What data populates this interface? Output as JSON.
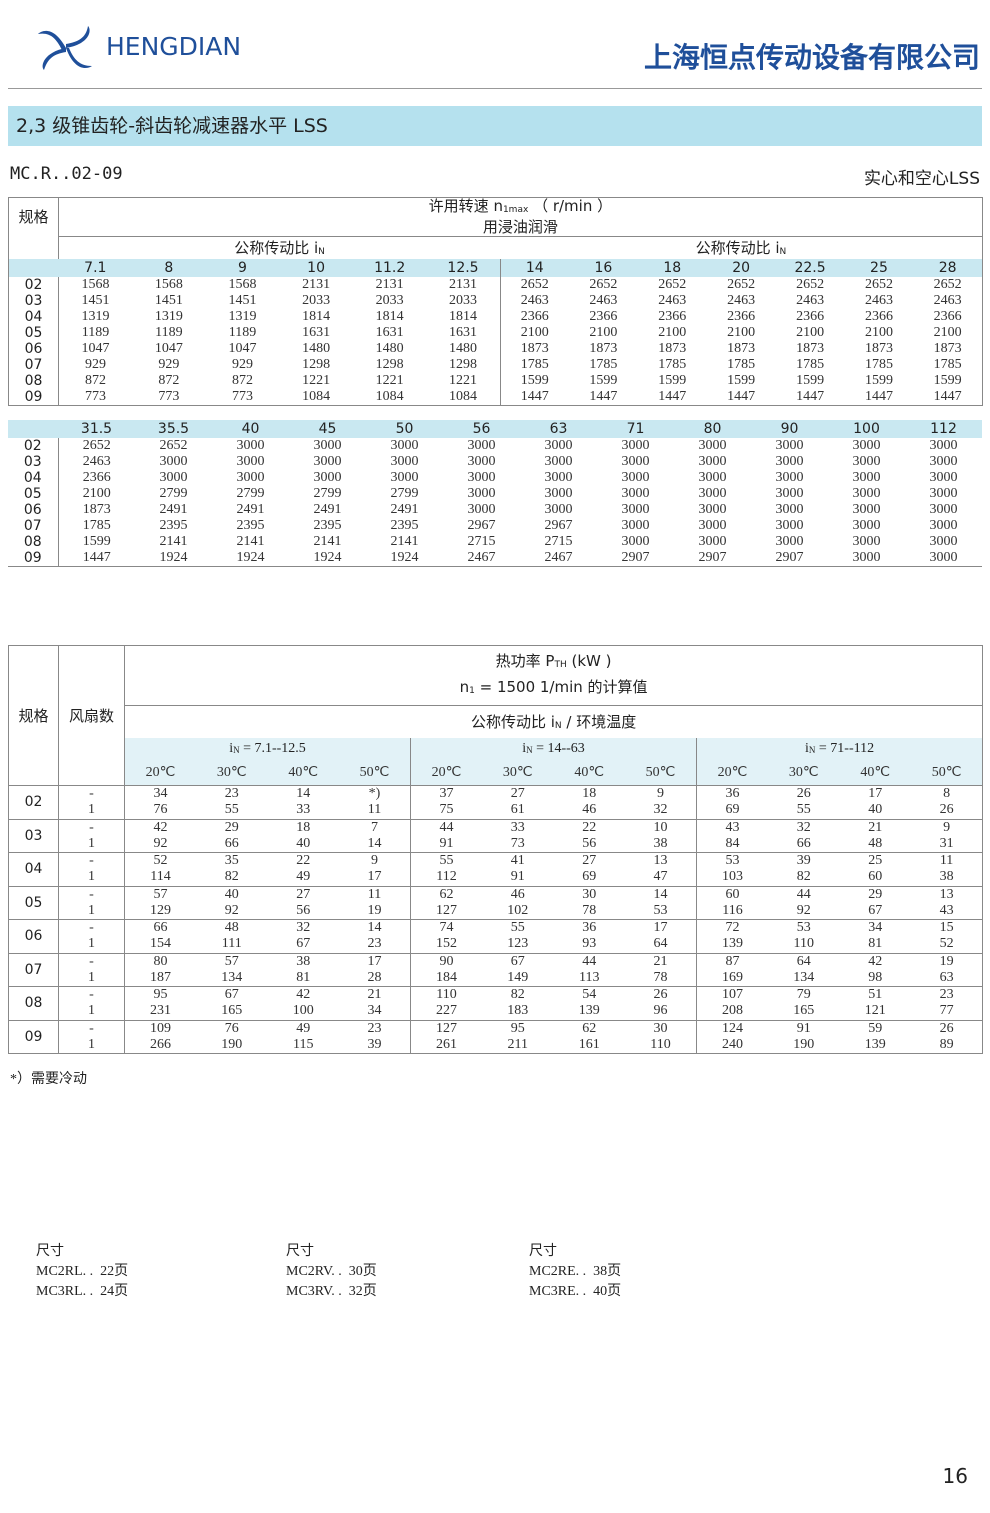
{
  "header": {
    "brand": "HENGDIAN",
    "company": "上海恒点传动设备有限公司"
  },
  "section_title": "2,3 级锥齿轮-斜齿轮减速器水平 LSS",
  "code": "MC.R..02-09",
  "type_label": "实心和空心LSS",
  "speed_table": {
    "size_header": "规格",
    "title": [
      "许用转速 n",
      "1max",
      "（ r/min ）"
    ],
    "subtitle": "用浸油润滑",
    "ratio_label_left": [
      "公称传动比 i",
      "N"
    ],
    "ratio_label_right": [
      "公称传动比 i",
      "N"
    ],
    "blocks": [
      {
        "ratios": [
          "7.1",
          "8",
          "9",
          "10",
          "11.2",
          "12.5",
          "14",
          "16",
          "18",
          "20",
          "22.5",
          "25",
          "28"
        ],
        "rows": [
          {
            "size": "02",
            "values": [
              1568,
              1568,
              1568,
              2131,
              2131,
              2131,
              2652,
              2652,
              2652,
              2652,
              2652,
              2652,
              2652
            ]
          },
          {
            "size": "03",
            "values": [
              1451,
              1451,
              1451,
              2033,
              2033,
              2033,
              2463,
              2463,
              2463,
              2463,
              2463,
              2463,
              2463
            ]
          },
          {
            "size": "04",
            "values": [
              1319,
              1319,
              1319,
              1814,
              1814,
              1814,
              2366,
              2366,
              2366,
              2366,
              2366,
              2366,
              2366
            ]
          },
          {
            "size": "05",
            "values": [
              1189,
              1189,
              1189,
              1631,
              1631,
              1631,
              2100,
              2100,
              2100,
              2100,
              2100,
              2100,
              2100
            ]
          },
          {
            "size": "06",
            "values": [
              1047,
              1047,
              1047,
              1480,
              1480,
              1480,
              1873,
              1873,
              1873,
              1873,
              1873,
              1873,
              1873
            ]
          },
          {
            "size": "07",
            "values": [
              929,
              929,
              929,
              1298,
              1298,
              1298,
              1785,
              1785,
              1785,
              1785,
              1785,
              1785,
              1785
            ]
          },
          {
            "size": "08",
            "values": [
              872,
              872,
              872,
              1221,
              1221,
              1221,
              1599,
              1599,
              1599,
              1599,
              1599,
              1599,
              1599
            ]
          },
          {
            "size": "09",
            "values": [
              773,
              773,
              773,
              1084,
              1084,
              1084,
              1447,
              1447,
              1447,
              1447,
              1447,
              1447,
              1447
            ]
          }
        ]
      },
      {
        "ratios": [
          "31.5",
          "35.5",
          "40",
          "45",
          "50",
          "56",
          "63",
          "71",
          "80",
          "90",
          "100",
          "112"
        ],
        "rows": [
          {
            "size": "02",
            "values": [
              2652,
              2652,
              3000,
              3000,
              3000,
              3000,
              3000,
              3000,
              3000,
              3000,
              3000,
              3000
            ]
          },
          {
            "size": "03",
            "values": [
              2463,
              3000,
              3000,
              3000,
              3000,
              3000,
              3000,
              3000,
              3000,
              3000,
              3000,
              3000
            ]
          },
          {
            "size": "04",
            "values": [
              2366,
              3000,
              3000,
              3000,
              3000,
              3000,
              3000,
              3000,
              3000,
              3000,
              3000,
              3000
            ]
          },
          {
            "size": "05",
            "values": [
              2100,
              2799,
              2799,
              2799,
              2799,
              3000,
              3000,
              3000,
              3000,
              3000,
              3000,
              3000
            ]
          },
          {
            "size": "06",
            "values": [
              1873,
              2491,
              2491,
              2491,
              2491,
              3000,
              3000,
              3000,
              3000,
              3000,
              3000,
              3000
            ]
          },
          {
            "size": "07",
            "values": [
              1785,
              2395,
              2395,
              2395,
              2395,
              2967,
              2967,
              3000,
              3000,
              3000,
              3000,
              3000
            ]
          },
          {
            "size": "08",
            "values": [
              1599,
              2141,
              2141,
              2141,
              2141,
              2715,
              2715,
              3000,
              3000,
              3000,
              3000,
              3000
            ]
          },
          {
            "size": "09",
            "values": [
              1447,
              1924,
              1924,
              1924,
              1924,
              2467,
              2467,
              2907,
              2907,
              2907,
              3000,
              3000
            ]
          }
        ]
      }
    ]
  },
  "thermal_table": {
    "size_header": "规格",
    "fan_header": "风扇数",
    "title": [
      "热功率 P",
      "TH",
      "(kW )"
    ],
    "subtitle": [
      "n",
      "1",
      "= 1500 1/min 的计算值"
    ],
    "ratio_label": [
      "公称传动比 i",
      "N",
      "/ 环境温度"
    ],
    "groups": [
      {
        "label": [
          "i",
          "N",
          "= 7.1--12.5"
        ],
        "temps": [
          "20℃",
          "30℃",
          "40℃",
          "50℃"
        ]
      },
      {
        "label": [
          "i",
          "N",
          "= 14--63"
        ],
        "temps": [
          "20℃",
          "30℃",
          "40℃",
          "50℃"
        ]
      },
      {
        "label": [
          "i",
          "N",
          "= 71--112"
        ],
        "temps": [
          "20℃",
          "30℃",
          "40℃",
          "50℃"
        ]
      }
    ],
    "rows": [
      {
        "size": "02",
        "fans": [
          {
            "fan": "-",
            "values": [
              34,
              23,
              14,
              "*)",
              37,
              27,
              18,
              9,
              36,
              26,
              17,
              8
            ]
          },
          {
            "fan": "1",
            "values": [
              76,
              55,
              33,
              11,
              75,
              61,
              46,
              32,
              69,
              55,
              40,
              26
            ]
          }
        ]
      },
      {
        "size": "03",
        "fans": [
          {
            "fan": "-",
            "values": [
              42,
              29,
              18,
              7,
              44,
              33,
              22,
              10,
              43,
              32,
              21,
              9
            ]
          },
          {
            "fan": "1",
            "values": [
              92,
              66,
              40,
              14,
              91,
              73,
              56,
              38,
              84,
              66,
              48,
              31
            ]
          }
        ]
      },
      {
        "size": "04",
        "fans": [
          {
            "fan": "-",
            "values": [
              52,
              35,
              22,
              9,
              55,
              41,
              27,
              13,
              53,
              39,
              25,
              11
            ]
          },
          {
            "fan": "1",
            "values": [
              114,
              82,
              49,
              17,
              112,
              91,
              69,
              47,
              103,
              82,
              60,
              38
            ]
          }
        ]
      },
      {
        "size": "05",
        "fans": [
          {
            "fan": "-",
            "values": [
              57,
              40,
              27,
              11,
              62,
              46,
              30,
              14,
              60,
              44,
              29,
              13
            ]
          },
          {
            "fan": "1",
            "values": [
              129,
              92,
              56,
              19,
              127,
              102,
              78,
              53,
              116,
              92,
              67,
              43
            ]
          }
        ]
      },
      {
        "size": "06",
        "fans": [
          {
            "fan": "-",
            "values": [
              66,
              48,
              32,
              14,
              74,
              55,
              36,
              17,
              72,
              53,
              34,
              15
            ]
          },
          {
            "fan": "1",
            "values": [
              154,
              111,
              67,
              23,
              152,
              123,
              93,
              64,
              139,
              110,
              81,
              52
            ]
          }
        ]
      },
      {
        "size": "07",
        "fans": [
          {
            "fan": "-",
            "values": [
              80,
              57,
              38,
              17,
              90,
              67,
              44,
              21,
              87,
              64,
              42,
              19
            ]
          },
          {
            "fan": "1",
            "values": [
              187,
              134,
              81,
              28,
              184,
              149,
              113,
              78,
              169,
              134,
              98,
              63
            ]
          }
        ]
      },
      {
        "size": "08",
        "fans": [
          {
            "fan": "-",
            "values": [
              95,
              67,
              42,
              21,
              110,
              82,
              54,
              26,
              107,
              79,
              51,
              23
            ]
          },
          {
            "fan": "1",
            "values": [
              231,
              165,
              100,
              34,
              227,
              183,
              139,
              96,
              208,
              165,
              121,
              77
            ]
          }
        ]
      },
      {
        "size": "09",
        "fans": [
          {
            "fan": "-",
            "values": [
              109,
              76,
              49,
              23,
              127,
              95,
              62,
              30,
              124,
              91,
              59,
              26
            ]
          },
          {
            "fan": "1",
            "values": [
              266,
              190,
              115,
              39,
              261,
              211,
              161,
              110,
              240,
              190,
              139,
              89
            ]
          }
        ]
      }
    ]
  },
  "note": "*）需要冷动",
  "references": [
    {
      "heading": "尺寸",
      "lines": [
        "MC2RL. .  22页",
        "MC3RL. .  24页"
      ]
    },
    {
      "heading": "尺寸",
      "lines": [
        "MC2RV. .  30页",
        "MC3RV. .  32页"
      ]
    },
    {
      "heading": "尺寸",
      "lines": [
        "MC2RE. .  38页",
        "MC3RE. .  40页"
      ]
    }
  ],
  "page_number": "16"
}
